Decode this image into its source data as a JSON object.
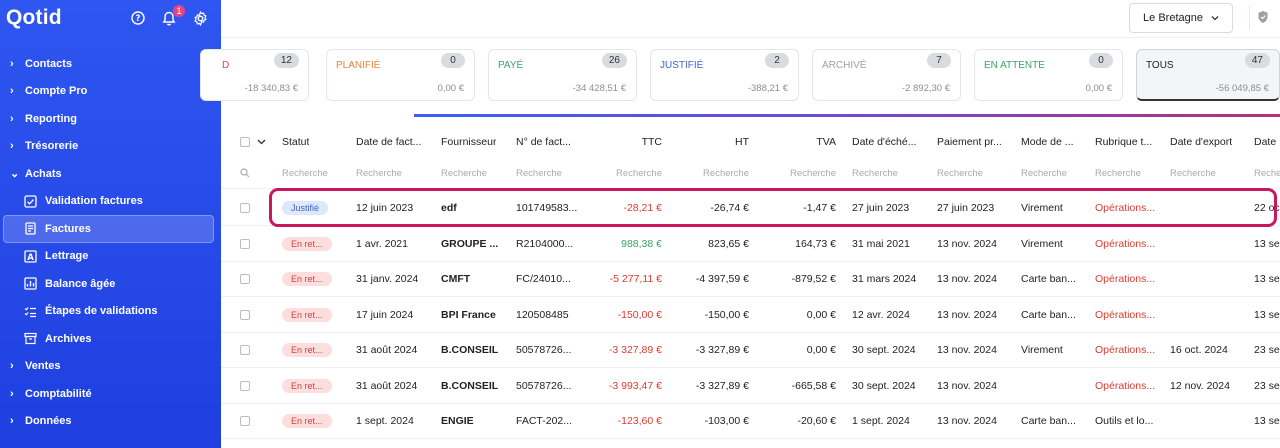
{
  "app": {
    "logo": "Qotid",
    "notification_count": "1"
  },
  "sidebar": {
    "items": [
      {
        "label": "Contacts"
      },
      {
        "label": "Compte Pro"
      },
      {
        "label": "Reporting"
      },
      {
        "label": "Trésorerie"
      },
      {
        "label": "Achats"
      }
    ],
    "achats_sub": [
      {
        "label": "Validation factures",
        "icon": "validation-icon"
      },
      {
        "label": "Factures",
        "icon": "invoice-icon"
      },
      {
        "label": "Lettrage",
        "icon": "lettrage-icon"
      },
      {
        "label": "Balance âgée",
        "icon": "balance-icon"
      },
      {
        "label": "Étapes de validations",
        "icon": "steps-icon"
      },
      {
        "label": "Archives",
        "icon": "archive-icon"
      }
    ],
    "bottom_items": [
      {
        "label": "Ventes"
      },
      {
        "label": "Comptabilité"
      },
      {
        "label": "Données"
      }
    ]
  },
  "header": {
    "org_name": "Le Bretagne"
  },
  "cards": [
    {
      "label": "D",
      "count": "12",
      "amount": "-18 340,83 €",
      "color": "#e0453a"
    },
    {
      "label": "PLANIFIÉ",
      "count": "0",
      "amount": "0,00 €",
      "color": "#e8843a"
    },
    {
      "label": "PAYÉ",
      "count": "26",
      "amount": "-34 428,51 €",
      "color": "#3aa463"
    },
    {
      "label": "JUSTIFIÉ",
      "count": "2",
      "amount": "-388,21 €",
      "color": "#3e65c9"
    },
    {
      "label": "ARCHIVÉ",
      "count": "7",
      "amount": "-2 892,30 €",
      "color": "#9aa0a8"
    },
    {
      "label": "EN ATTENTE",
      "count": "0",
      "amount": "0,00 €",
      "color": "#3aa463"
    },
    {
      "label": "TOUS",
      "count": "47",
      "amount": "-56 049,85 €",
      "color": "#222222"
    }
  ],
  "table": {
    "headers": [
      "Statut",
      "Date de fact...",
      "Fournisseur",
      "N° de fact...",
      "TTC",
      "HT",
      "TVA",
      "Date d'éché...",
      "Paiement pr...",
      "Mode de ...",
      "Rubrique t...",
      "Date d'export",
      "Date"
    ],
    "search_placeholder": "Recherche",
    "rows": [
      {
        "status": "Justifié",
        "status_type": "justifie",
        "date": "12 juin 2023",
        "supplier": "edf",
        "number": "101749583...",
        "ttc": "-28,21 €",
        "ttc_sign": "neg",
        "ht": "-26,74 €",
        "tva": "-1,47 €",
        "due": "27 juin 2023",
        "payment": "27 juin 2023",
        "mode": "Virement",
        "rubrique": "Opérations...",
        "rubrique_type": "link",
        "export": "",
        "last": "22 oc"
      },
      {
        "status": "En ret...",
        "status_type": "retard",
        "date": "1 avr. 2021",
        "supplier": "GROUPE ...",
        "number": "R2104000...",
        "ttc": "988,38 €",
        "ttc_sign": "pos",
        "ht": "823,65 €",
        "tva": "164,73 €",
        "due": "31 mai 2021",
        "payment": "13 nov. 2024",
        "mode": "Virement",
        "rubrique": "Opérations...",
        "rubrique_type": "link",
        "export": "",
        "last": "13 se"
      },
      {
        "status": "En ret...",
        "status_type": "retard",
        "date": "31 janv. 2024",
        "supplier": "CMFT",
        "number": "FC/24010...",
        "ttc": "-5 277,11 €",
        "ttc_sign": "neg",
        "ht": "-4 397,59 €",
        "tva": "-879,52 €",
        "due": "31 mars 2024",
        "payment": "13 nov. 2024",
        "mode": "Carte ban...",
        "rubrique": "Opérations...",
        "rubrique_type": "link",
        "export": "",
        "last": "13 se"
      },
      {
        "status": "En ret...",
        "status_type": "retard",
        "date": "17 juin 2024",
        "supplier": "BPI France",
        "number": "120508485",
        "ttc": "-150,00 €",
        "ttc_sign": "neg",
        "ht": "-150,00 €",
        "tva": "0,00 €",
        "due": "12 avr. 2024",
        "payment": "13 nov. 2024",
        "mode": "Carte ban...",
        "rubrique": "Opérations...",
        "rubrique_type": "link",
        "export": "",
        "last": "13 se"
      },
      {
        "status": "En ret...",
        "status_type": "retard",
        "date": "31 août 2024",
        "supplier": "B.CONSEIL",
        "number": "50578726...",
        "ttc": "-3 327,89 €",
        "ttc_sign": "neg",
        "ht": "-3 327,89 €",
        "tva": "0,00 €",
        "due": "30 sept. 2024",
        "payment": "13 nov. 2024",
        "mode": "Virement",
        "rubrique": "Opérations...",
        "rubrique_type": "link",
        "export": "16 oct. 2024",
        "last": "23 se"
      },
      {
        "status": "En ret...",
        "status_type": "retard",
        "date": "31 août 2024",
        "supplier": "B.CONSEIL",
        "number": "50578726...",
        "ttc": "-3 993,47 €",
        "ttc_sign": "neg",
        "ht": "-3 327,89 €",
        "tva": "-665,58 €",
        "due": "30 sept. 2024",
        "payment": "13 nov. 2024",
        "mode": "",
        "rubrique": "Opérations...",
        "rubrique_type": "link",
        "export": "12 nov. 2024",
        "last": "23 se"
      },
      {
        "status": "En ret...",
        "status_type": "retard",
        "date": "1 sept. 2024",
        "supplier": "ENGIE",
        "number": "FACT-202...",
        "ttc": "-123,60 €",
        "ttc_sign": "neg",
        "ht": "-103,00 €",
        "tva": "-20,60 €",
        "due": "1 sept. 2024",
        "payment": "13 nov. 2024",
        "mode": "Carte ban...",
        "rubrique": "Outils et lo...",
        "rubrique_type": "plain",
        "export": "",
        "last": "13 se"
      }
    ]
  }
}
